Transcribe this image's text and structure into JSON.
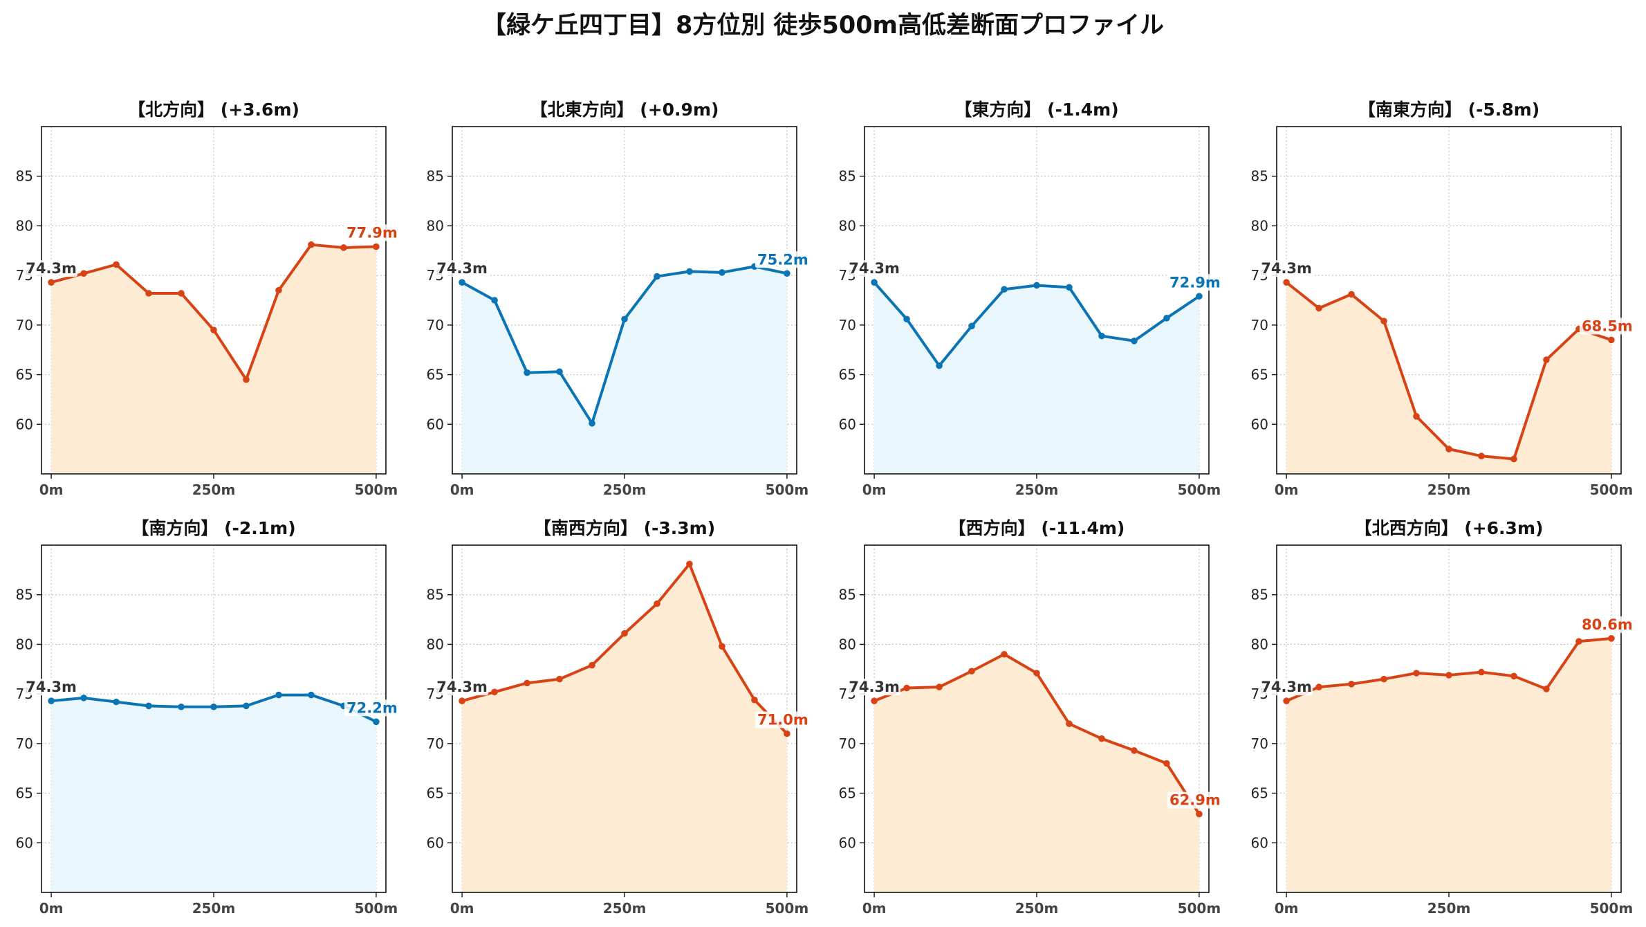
{
  "title": "【緑ケ丘四丁目】8方位別 徒歩500m高低差断面プロファイル",
  "colors": {
    "up": "#d84315",
    "down": "#0a74b5",
    "up_fill": "#fdebd3",
    "down_fill": "#e9f6fb",
    "start_label": "#333333"
  },
  "chart_data": [
    {
      "type": "area",
      "title": "【北方向】 (+3.6m)",
      "trend": "up",
      "x": [
        0,
        50,
        100,
        150,
        200,
        250,
        300,
        350,
        400,
        450,
        500
      ],
      "values": [
        74.3,
        75.2,
        76.1,
        73.2,
        73.2,
        69.5,
        64.5,
        73.5,
        78.1,
        77.8,
        77.9
      ],
      "start_label": "74.3m",
      "end_label": "77.9m",
      "ylim": [
        55,
        90
      ],
      "yticks": [
        60,
        65,
        70,
        75,
        80,
        85
      ],
      "xlim": [
        -15,
        515
      ],
      "xticks": [
        0,
        250,
        500
      ],
      "xticklabels": [
        "0m",
        "250m",
        "500m"
      ],
      "grid": true
    },
    {
      "type": "area",
      "title": "【北東方向】 (+0.9m)",
      "trend": "down",
      "x": [
        0,
        50,
        100,
        150,
        200,
        250,
        300,
        350,
        400,
        450,
        500
      ],
      "values": [
        74.3,
        72.5,
        65.2,
        65.3,
        60.1,
        70.6,
        74.9,
        75.4,
        75.3,
        75.9,
        75.2
      ],
      "start_label": "74.3m",
      "end_label": "75.2m",
      "ylim": [
        55,
        90
      ],
      "yticks": [
        60,
        65,
        70,
        75,
        80,
        85
      ],
      "xlim": [
        -15,
        515
      ],
      "xticks": [
        0,
        250,
        500
      ],
      "xticklabels": [
        "0m",
        "250m",
        "500m"
      ],
      "grid": true
    },
    {
      "type": "area",
      "title": "【東方向】 (-1.4m)",
      "trend": "down",
      "x": [
        0,
        50,
        100,
        150,
        200,
        250,
        300,
        350,
        400,
        450,
        500
      ],
      "values": [
        74.3,
        70.6,
        65.9,
        69.9,
        73.6,
        74.0,
        73.8,
        68.9,
        68.4,
        70.7,
        72.9
      ],
      "start_label": "74.3m",
      "end_label": "72.9m",
      "ylim": [
        55,
        90
      ],
      "yticks": [
        60,
        65,
        70,
        75,
        80,
        85
      ],
      "xlim": [
        -15,
        515
      ],
      "xticks": [
        0,
        250,
        500
      ],
      "xticklabels": [
        "0m",
        "250m",
        "500m"
      ],
      "grid": true
    },
    {
      "type": "area",
      "title": "【南東方向】 (-5.8m)",
      "trend": "up",
      "x": [
        0,
        50,
        100,
        150,
        200,
        250,
        300,
        350,
        400,
        450,
        500
      ],
      "values": [
        74.3,
        71.7,
        73.1,
        70.4,
        60.8,
        57.5,
        56.8,
        56.5,
        66.5,
        69.6,
        68.5
      ],
      "start_label": "74.3m",
      "end_label": "68.5m",
      "ylim": [
        55,
        90
      ],
      "yticks": [
        60,
        65,
        70,
        75,
        80,
        85
      ],
      "xlim": [
        -15,
        515
      ],
      "xticks": [
        0,
        250,
        500
      ],
      "xticklabels": [
        "0m",
        "250m",
        "500m"
      ],
      "grid": true
    },
    {
      "type": "area",
      "title": "【南方向】 (-2.1m)",
      "trend": "down",
      "x": [
        0,
        50,
        100,
        150,
        200,
        250,
        300,
        350,
        400,
        450,
        500
      ],
      "values": [
        74.3,
        74.6,
        74.2,
        73.8,
        73.7,
        73.7,
        73.8,
        74.9,
        74.9,
        73.8,
        72.2
      ],
      "start_label": "74.3m",
      "end_label": "72.2m",
      "ylim": [
        55,
        90
      ],
      "yticks": [
        60,
        65,
        70,
        75,
        80,
        85
      ],
      "xlim": [
        -15,
        515
      ],
      "xticks": [
        0,
        250,
        500
      ],
      "xticklabels": [
        "0m",
        "250m",
        "500m"
      ],
      "grid": true
    },
    {
      "type": "area",
      "title": "【南西方向】 (-3.3m)",
      "trend": "up",
      "x": [
        0,
        50,
        100,
        150,
        200,
        250,
        300,
        350,
        400,
        450,
        500
      ],
      "values": [
        74.3,
        75.2,
        76.1,
        76.5,
        77.9,
        81.1,
        84.1,
        88.1,
        79.8,
        74.4,
        71.0
      ],
      "start_label": "74.3m",
      "end_label": "71.0m",
      "ylim": [
        55,
        90
      ],
      "yticks": [
        60,
        65,
        70,
        75,
        80,
        85
      ],
      "xlim": [
        -15,
        515
      ],
      "xticks": [
        0,
        250,
        500
      ],
      "xticklabels": [
        "0m",
        "250m",
        "500m"
      ],
      "grid": true
    },
    {
      "type": "area",
      "title": "【西方向】 (-11.4m)",
      "trend": "up",
      "x": [
        0,
        50,
        100,
        150,
        200,
        250,
        300,
        350,
        400,
        450,
        500
      ],
      "values": [
        74.3,
        75.6,
        75.7,
        77.3,
        79.0,
        77.1,
        72.0,
        70.5,
        69.3,
        68.0,
        62.9
      ],
      "start_label": "74.3m",
      "end_label": "62.9m",
      "ylim": [
        55,
        90
      ],
      "yticks": [
        60,
        65,
        70,
        75,
        80,
        85
      ],
      "xlim": [
        -15,
        515
      ],
      "xticks": [
        0,
        250,
        500
      ],
      "xticklabels": [
        "0m",
        "250m",
        "500m"
      ],
      "grid": true
    },
    {
      "type": "area",
      "title": "【北西方向】 (+6.3m)",
      "trend": "up",
      "x": [
        0,
        50,
        100,
        150,
        200,
        250,
        300,
        350,
        400,
        450,
        500
      ],
      "values": [
        74.3,
        75.7,
        76.0,
        76.5,
        77.1,
        76.9,
        77.2,
        76.8,
        75.5,
        80.3,
        80.6
      ],
      "start_label": "74.3m",
      "end_label": "80.6m",
      "ylim": [
        55,
        90
      ],
      "yticks": [
        60,
        65,
        70,
        75,
        80,
        85
      ],
      "xlim": [
        -15,
        515
      ],
      "xticks": [
        0,
        250,
        500
      ],
      "xticklabels": [
        "0m",
        "250m",
        "500m"
      ],
      "grid": true
    }
  ]
}
